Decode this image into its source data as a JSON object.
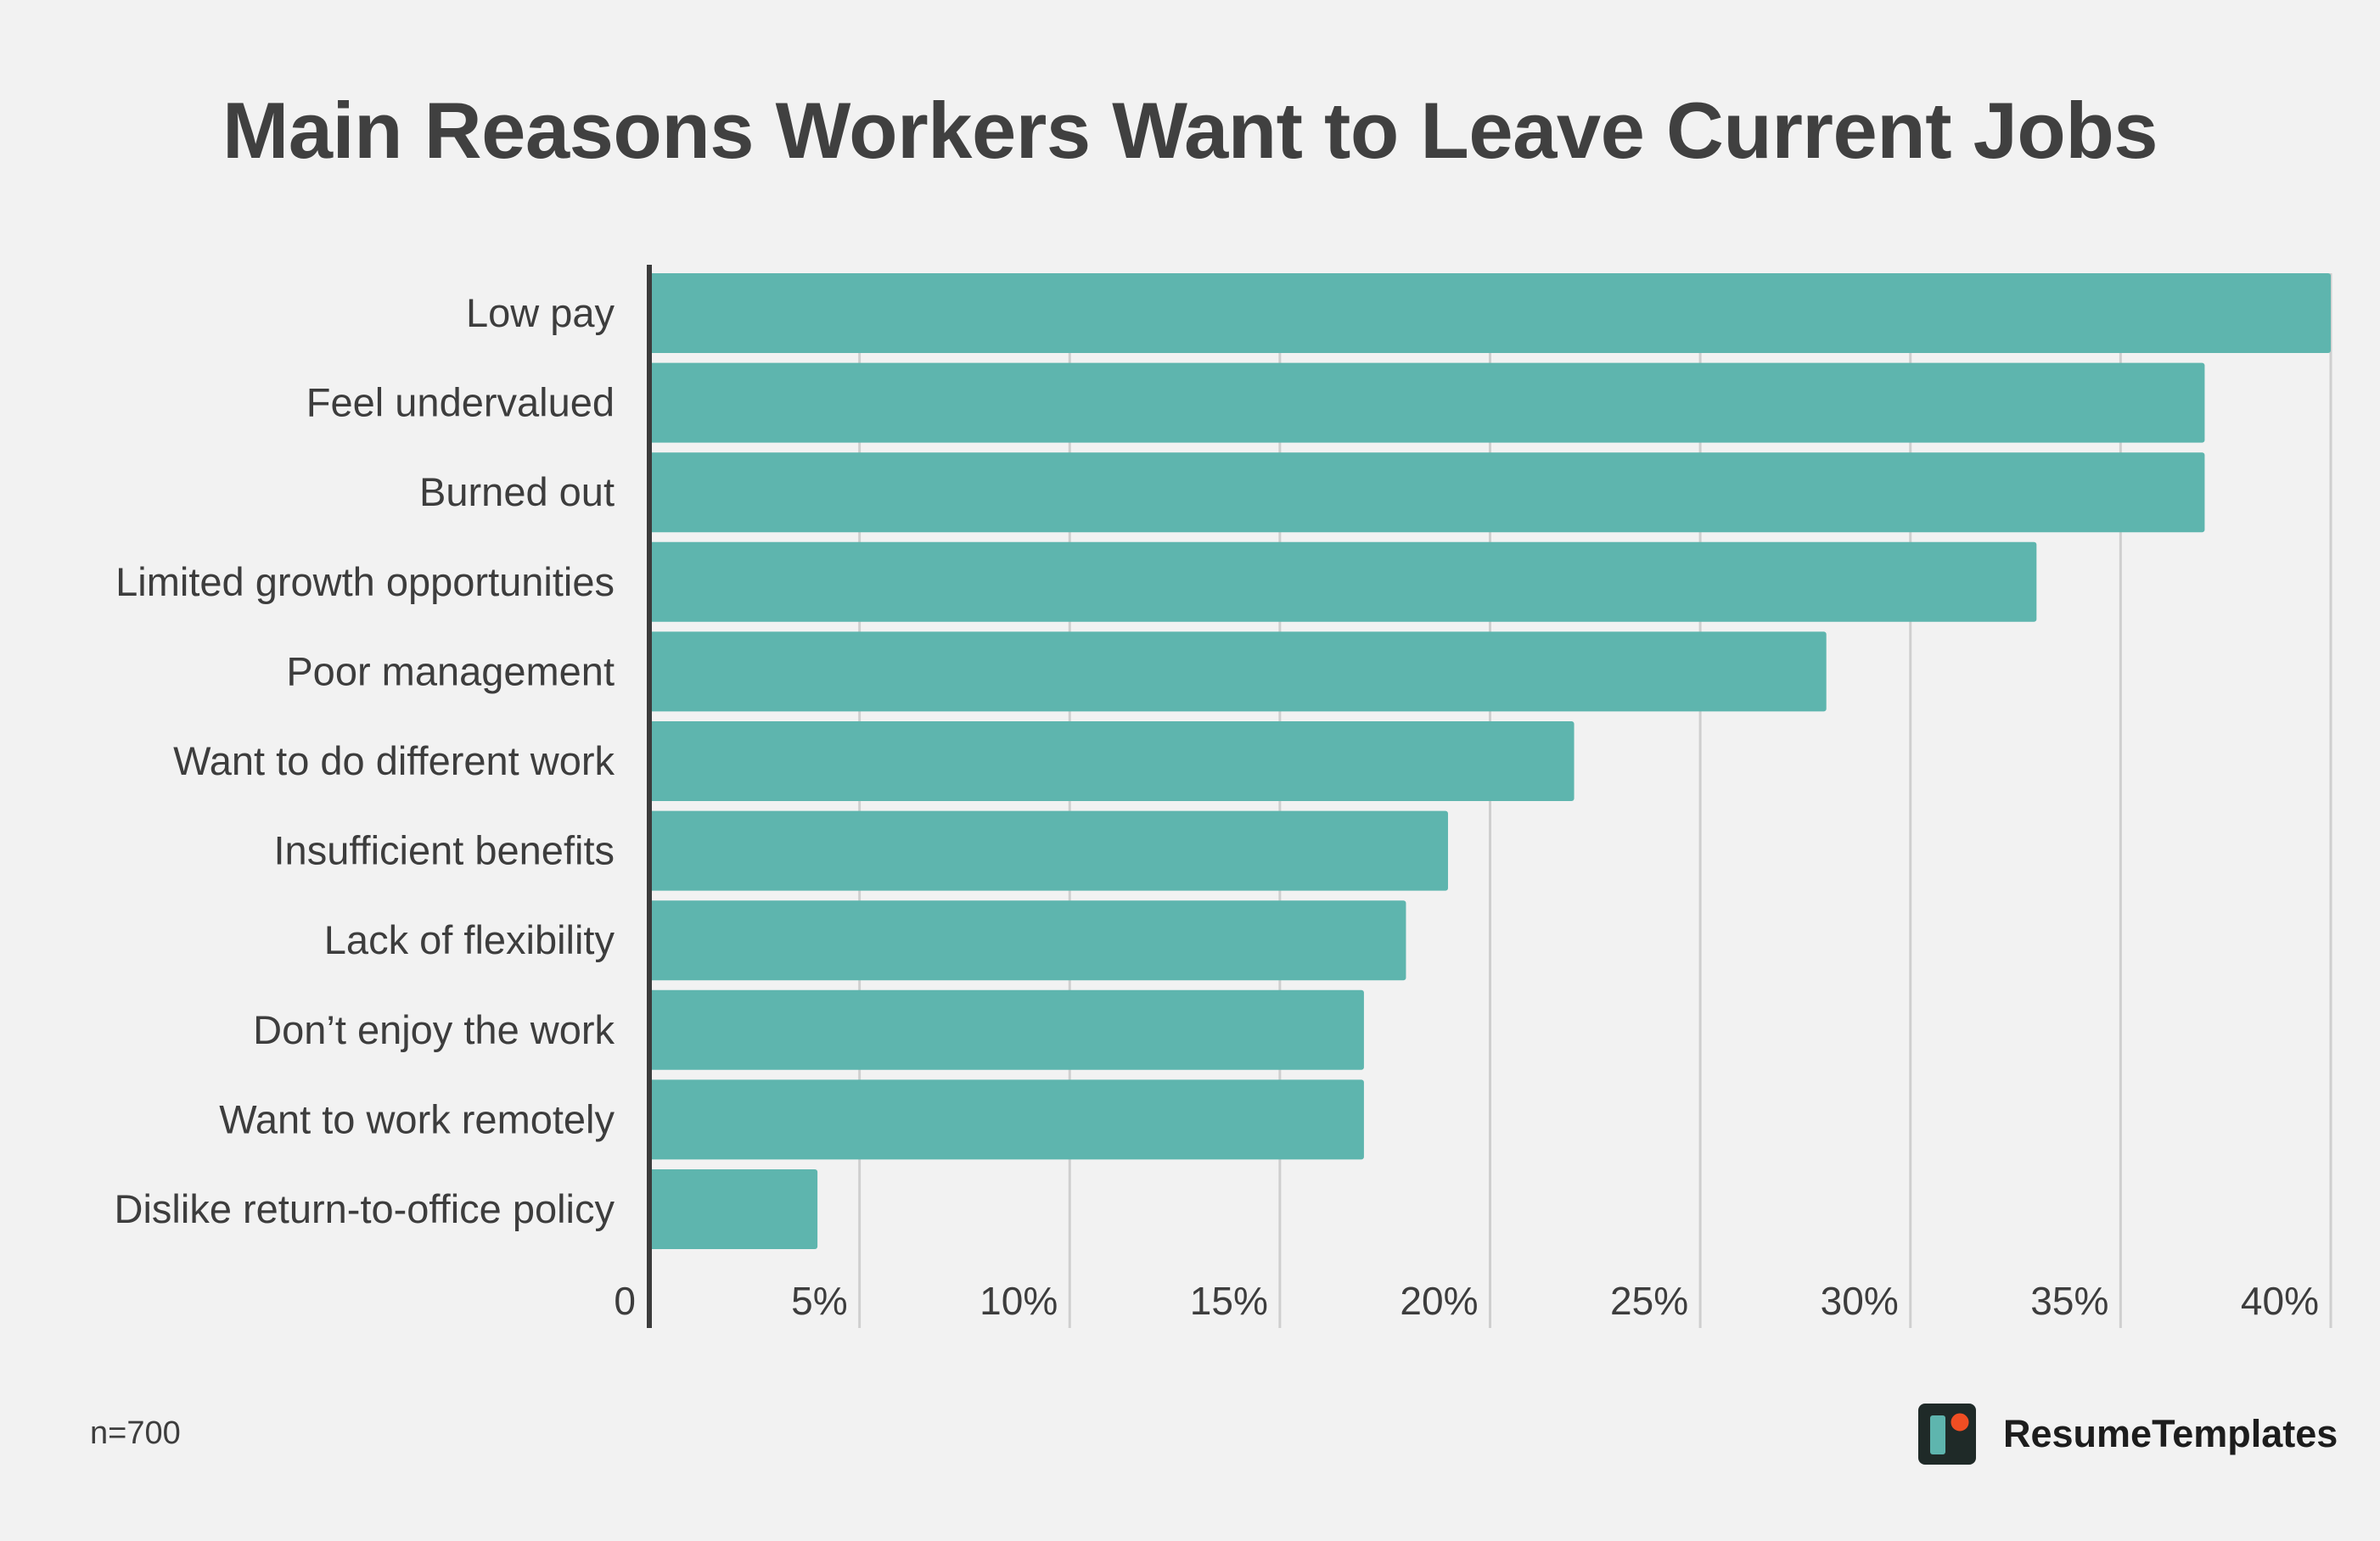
{
  "title": "Main Reasons Workers Want to Leave Current Jobs",
  "footnote": "n=700",
  "brand": {
    "name": "ResumeTemplates",
    "icon": "resumetemplates-logo-icon"
  },
  "colors": {
    "bar": "#5eb5ae",
    "axis": "#3c3c3c",
    "grid": "#cfcfcf",
    "text": "#3d3d3d",
    "background": "#f2f2f2"
  },
  "chart_data": {
    "type": "bar",
    "orientation": "horizontal",
    "categories": [
      "Low pay",
      "Feel undervalued",
      "Burned out",
      "Limited growth opportunities",
      "Poor management",
      "Want to do different work",
      "Insufficient benefits",
      "Lack of flexibility",
      "Don’t enjoy the work",
      "Want to work remotely",
      "Dislike return-to-office policy"
    ],
    "values": [
      40,
      37,
      37,
      33,
      28,
      22,
      19,
      18,
      17,
      17,
      4
    ],
    "xlim": [
      0,
      40
    ],
    "xticks": [
      0,
      5,
      10,
      15,
      20,
      25,
      30,
      35,
      40
    ],
    "xtick_labels": [
      "0",
      "5%",
      "10%",
      "15%",
      "20%",
      "25%",
      "30%",
      "35%",
      "40%"
    ],
    "grid": true,
    "legend": "none"
  }
}
